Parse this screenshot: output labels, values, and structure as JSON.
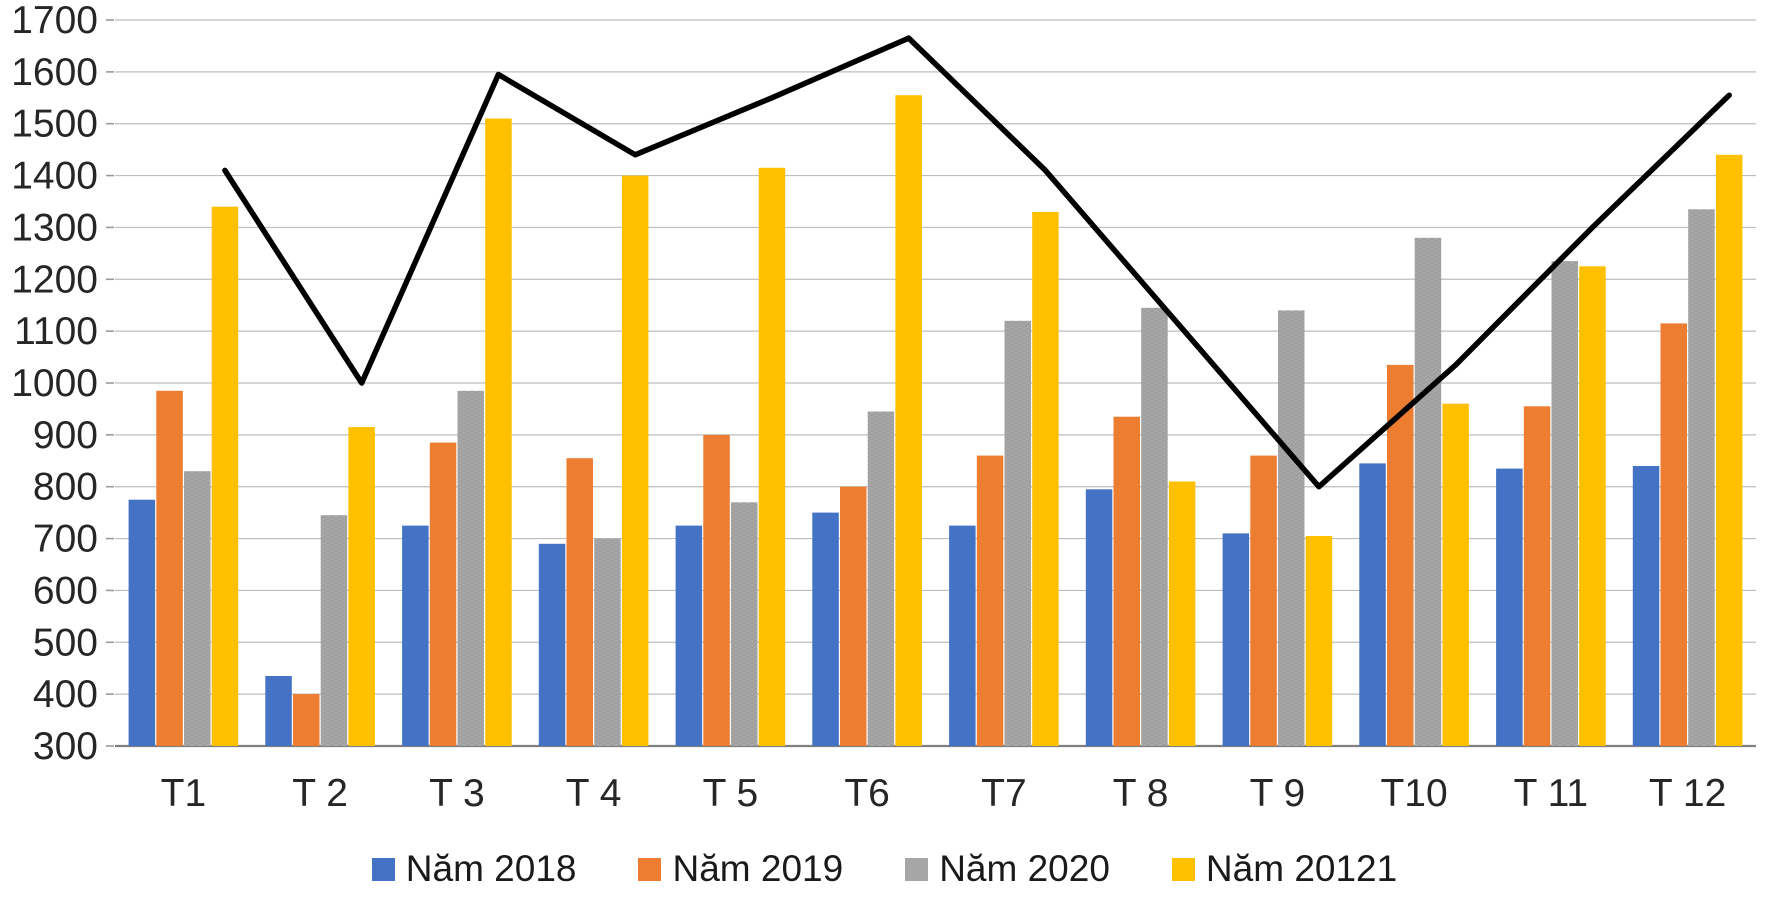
{
  "chart_data": {
    "type": "bar",
    "subtype": "grouped-columns-with-line-overlay",
    "title": "",
    "xlabel": "",
    "ylabel": "",
    "categories": [
      "T1",
      "T 2",
      "T 3",
      "T 4",
      "T 5",
      "T6",
      "T7",
      "T 8",
      "T 9",
      "T10",
      "T 11",
      "T 12"
    ],
    "series": [
      {
        "name": "Năm 2018",
        "type": "bar",
        "color": "#4472C4",
        "values": [
          775,
          435,
          725,
          690,
          725,
          750,
          725,
          795,
          710,
          845,
          835,
          840
        ]
      },
      {
        "name": "Năm 2019",
        "type": "bar",
        "color": "#ED7D31",
        "values": [
          985,
          400,
          885,
          855,
          900,
          800,
          860,
          935,
          860,
          1035,
          955,
          1115
        ]
      },
      {
        "name": "Năm 2020",
        "type": "bar",
        "color": "#A6A6A6",
        "values": [
          830,
          745,
          985,
          700,
          770,
          945,
          1120,
          1145,
          1140,
          1280,
          1235,
          1335
        ]
      },
      {
        "name": "Năm 20121",
        "type": "bar",
        "color": "#FFC000",
        "values": [
          1340,
          915,
          1510,
          1400,
          1415,
          1555,
          1330,
          810,
          705,
          960,
          1225,
          1440
        ]
      },
      {
        "name": "trend-line",
        "type": "line",
        "color": "#000000",
        "in_legend": false,
        "values": [
          1410,
          1000,
          1595,
          1440,
          1550,
          1665,
          1410,
          1105,
          800,
          1035,
          1300,
          1555
        ]
      }
    ],
    "ylim": [
      300,
      1700
    ],
    "ytick_step": 100,
    "ytick_labels": [
      "300",
      "400",
      "500",
      "600",
      "700",
      "800",
      "900",
      "1000",
      "1100",
      "1200",
      "1300",
      "1400",
      "1500",
      "1600",
      "1700"
    ],
    "grid": "horizontal-only",
    "gridline_color": "#BDBDBD",
    "baseline_color": "#7F7F7F",
    "legend_position": "bottom-center",
    "legend": [
      {
        "label": "Năm 2018",
        "color": "#4472C4"
      },
      {
        "label": "Năm 2019",
        "color": "#ED7D31"
      },
      {
        "label": "Năm 2020",
        "color": "#A6A6A6"
      },
      {
        "label": "Năm 20121",
        "color": "#FFC000"
      }
    ]
  }
}
